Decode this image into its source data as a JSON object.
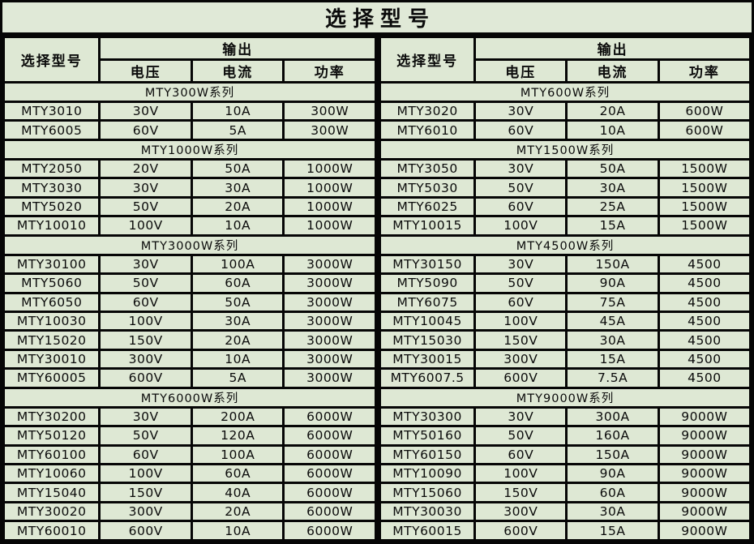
{
  "title": "选择型号",
  "columns": {
    "model": "选择型号",
    "output": "输出",
    "voltage": "电压",
    "current": "电流",
    "power": "功率"
  },
  "colors": {
    "cell_bg": "#dee8d4",
    "border": "#060606",
    "text": "#0b0b0b"
  },
  "left": {
    "sections": [
      {
        "name": "MTY300W系列",
        "rows": [
          [
            "MTY3010",
            "30V",
            "10A",
            "300W"
          ],
          [
            "MTY6005",
            "60V",
            "5A",
            "300W"
          ]
        ]
      },
      {
        "name": "MTY1000W系列",
        "rows": [
          [
            "MTY2050",
            "20V",
            "50A",
            "1000W"
          ],
          [
            "MTY3030",
            "30V",
            "30A",
            "1000W"
          ],
          [
            "MTY5020",
            "50V",
            "20A",
            "1000W"
          ],
          [
            "MTY10010",
            "100V",
            "10A",
            "1000W"
          ]
        ]
      },
      {
        "name": "MTY3000W系列",
        "rows": [
          [
            "MTY30100",
            "30V",
            "100A",
            "3000W"
          ],
          [
            "MTY5060",
            "50V",
            "60A",
            "3000W"
          ],
          [
            "MTY6050",
            "60V",
            "50A",
            "3000W"
          ],
          [
            "MTY10030",
            "100V",
            "30A",
            "3000W"
          ],
          [
            "MTY15020",
            "150V",
            "20A",
            "3000W"
          ],
          [
            "MTY30010",
            "300V",
            "10A",
            "3000W"
          ],
          [
            "MTY60005",
            "600V",
            "5A",
            "3000W"
          ]
        ]
      },
      {
        "name": "MTY6000W系列",
        "rows": [
          [
            "MTY30200",
            "30V",
            "200A",
            "6000W"
          ],
          [
            "MTY50120",
            "50V",
            "120A",
            "6000W"
          ],
          [
            "MTY60100",
            "60V",
            "100A",
            "6000W"
          ],
          [
            "MTY10060",
            "100V",
            "60A",
            "6000W"
          ],
          [
            "MTY15040",
            "150V",
            "40A",
            "6000W"
          ],
          [
            "MTY30020",
            "300V",
            "20A",
            "6000W"
          ],
          [
            "MTY60010",
            "600V",
            "10A",
            "6000W"
          ]
        ]
      }
    ]
  },
  "right": {
    "sections": [
      {
        "name": "MTY600W系列",
        "rows": [
          [
            "MTY3020",
            "30V",
            "20A",
            "600W"
          ],
          [
            "MTY6010",
            "60V",
            "10A",
            "600W"
          ]
        ]
      },
      {
        "name": "MTY1500W系列",
        "rows": [
          [
            "MTY3050",
            "30V",
            "50A",
            "1500W"
          ],
          [
            "MTY5030",
            "50V",
            "30A",
            "1500W"
          ],
          [
            "MTY6025",
            "60V",
            "25A",
            "1500W"
          ],
          [
            "MTY10015",
            "100V",
            "15A",
            "1500W"
          ]
        ]
      },
      {
        "name": "MTY4500W系列",
        "rows": [
          [
            "MTY30150",
            "30V",
            "150A",
            "4500"
          ],
          [
            "MTY5090",
            "50V",
            "90A",
            "4500"
          ],
          [
            "MTY6075",
            "60V",
            "75A",
            "4500"
          ],
          [
            "MTY10045",
            "100V",
            "45A",
            "4500"
          ],
          [
            "MTY15030",
            "150V",
            "30A",
            "4500"
          ],
          [
            "MTY30015",
            "300V",
            "15A",
            "4500"
          ],
          [
            "MTY6007.5",
            "600V",
            "7.5A",
            "4500"
          ]
        ]
      },
      {
        "name": "MTY9000W系列",
        "rows": [
          [
            "MTY30300",
            "30V",
            "300A",
            "9000W"
          ],
          [
            "MTY50160",
            "50V",
            "160A",
            "9000W"
          ],
          [
            "MTY60150",
            "60V",
            "150A",
            "9000W"
          ],
          [
            "MTY10090",
            "100V",
            "90A",
            "9000W"
          ],
          [
            "MTY15060",
            "150V",
            "60A",
            "9000W"
          ],
          [
            "MTY30030",
            "300V",
            "30A",
            "9000W"
          ],
          [
            "MTY60015",
            "600V",
            "15A",
            "9000W"
          ]
        ]
      }
    ]
  }
}
